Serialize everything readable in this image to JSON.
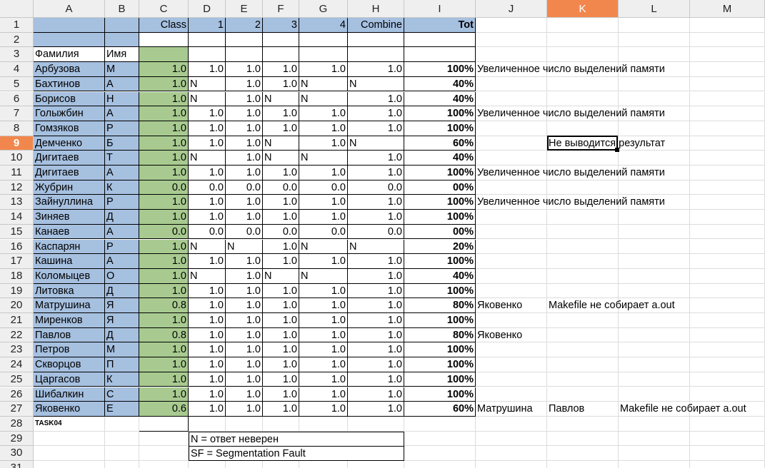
{
  "columns": [
    "A",
    "B",
    "C",
    "D",
    "E",
    "F",
    "G",
    "H",
    "I",
    "J",
    "K",
    "L",
    "M"
  ],
  "selected_column": "K",
  "selected_row": 9,
  "row_numbers": [
    1,
    2,
    3,
    4,
    5,
    6,
    7,
    8,
    9,
    10,
    11,
    12,
    13,
    14,
    15,
    16,
    17,
    18,
    19,
    20,
    21,
    22,
    23,
    24,
    25,
    26,
    27,
    28,
    29,
    30,
    31
  ],
  "header_row1": {
    "c": "Class",
    "d": "1",
    "e": "2",
    "f": "3",
    "g": "4",
    "h": "Combine",
    "i": "Tot"
  },
  "header_row3": {
    "a": "Фамилия",
    "b": "Имя"
  },
  "students": [
    {
      "row": 4,
      "a": "Арбузова",
      "b": "М",
      "c": "1.0",
      "d": "1.0",
      "e": "1.0",
      "f": "1.0",
      "g": "1.0",
      "h": "1.0",
      "i": "100%",
      "j": "Увеличенное число выделений памяти",
      "k": "",
      "l": ""
    },
    {
      "row": 5,
      "a": "Бахтинов",
      "b": "А",
      "c": "1.0",
      "d": "N",
      "e": "1.0",
      "f": "1.0",
      "g": "N",
      "h": "N",
      "i": "40%",
      "j": "",
      "k": "",
      "l": ""
    },
    {
      "row": 6,
      "a": "Борисов",
      "b": "Н",
      "c": "1.0",
      "d": "N",
      "e": "1.0",
      "f": "N",
      "g": "N",
      "h": "1.0",
      "i": "40%",
      "j": "",
      "k": "",
      "l": ""
    },
    {
      "row": 7,
      "a": "Голыжбин",
      "b": "А",
      "c": "1.0",
      "d": "1.0",
      "e": "1.0",
      "f": "1.0",
      "g": "1.0",
      "h": "1.0",
      "i": "100%",
      "j": "Увеличенное число выделений памяти",
      "k": "",
      "l": ""
    },
    {
      "row": 8,
      "a": "Гомзяков",
      "b": "Р",
      "c": "1.0",
      "d": "1.0",
      "e": "1.0",
      "f": "1.0",
      "g": "1.0",
      "h": "1.0",
      "i": "100%",
      "j": "",
      "k": "",
      "l": ""
    },
    {
      "row": 9,
      "a": "Демченко",
      "b": "Б",
      "c": "1.0",
      "d": "1.0",
      "e": "1.0",
      "f": "N",
      "g": "1.0",
      "h": "N",
      "i": "60%",
      "j": "",
      "k": "Не выводится результат",
      "l": ""
    },
    {
      "row": 10,
      "a": "Дигитаев",
      "b": "Т",
      "c": "1.0",
      "d": "N",
      "e": "1.0",
      "f": "N",
      "g": "N",
      "h": "1.0",
      "i": "40%",
      "j": "",
      "k": "",
      "l": ""
    },
    {
      "row": 11,
      "a": "Дигитаев",
      "b": "А",
      "c": "1.0",
      "d": "1.0",
      "e": "1.0",
      "f": "1.0",
      "g": "1.0",
      "h": "1.0",
      "i": "100%",
      "j": "Увеличенное число выделений памяти",
      "k": "",
      "l": ""
    },
    {
      "row": 12,
      "a": "Жубрин",
      "b": "К",
      "c": "0.0",
      "d": "0.0",
      "e": "0.0",
      "f": "0.0",
      "g": "0.0",
      "h": "0.0",
      "i": "00%",
      "j": "",
      "k": "",
      "l": ""
    },
    {
      "row": 13,
      "a": "Зайнуллина",
      "b": "Р",
      "c": "1.0",
      "d": "1.0",
      "e": "1.0",
      "f": "1.0",
      "g": "1.0",
      "h": "1.0",
      "i": "100%",
      "j": "Увеличенное число выделений памяти",
      "k": "",
      "l": ""
    },
    {
      "row": 14,
      "a": "Зиняев",
      "b": "Д",
      "c": "1.0",
      "d": "1.0",
      "e": "1.0",
      "f": "1.0",
      "g": "1.0",
      "h": "1.0",
      "i": "100%",
      "j": "",
      "k": "",
      "l": ""
    },
    {
      "row": 15,
      "a": "Канаев",
      "b": "А",
      "c": "0.0",
      "d": "0.0",
      "e": "0.0",
      "f": "0.0",
      "g": "0.0",
      "h": "0.0",
      "i": "00%",
      "j": "",
      "k": "",
      "l": ""
    },
    {
      "row": 16,
      "a": "Каспарян",
      "b": "Р",
      "c": "1.0",
      "d": "N",
      "e": "N",
      "f": "1.0",
      "g": "N",
      "h": "N",
      "i": "20%",
      "j": "",
      "k": "",
      "l": ""
    },
    {
      "row": 17,
      "a": "Кашина",
      "b": "А",
      "c": "1.0",
      "d": "1.0",
      "e": "1.0",
      "f": "1.0",
      "g": "1.0",
      "h": "1.0",
      "i": "100%",
      "j": "",
      "k": "",
      "l": ""
    },
    {
      "row": 18,
      "a": "Коломыцев",
      "b": "О",
      "c": "1.0",
      "d": "N",
      "e": "1.0",
      "f": "N",
      "g": "N",
      "h": "1.0",
      "i": "40%",
      "j": "",
      "k": "",
      "l": ""
    },
    {
      "row": 19,
      "a": "Литовка",
      "b": "Д",
      "c": "1.0",
      "d": "1.0",
      "e": "1.0",
      "f": "1.0",
      "g": "1.0",
      "h": "1.0",
      "i": "100%",
      "j": "",
      "k": "",
      "l": ""
    },
    {
      "row": 20,
      "a": "Матрушина",
      "b": "Я",
      "c": "0.8",
      "d": "1.0",
      "e": "1.0",
      "f": "1.0",
      "g": "1.0",
      "h": "1.0",
      "i": "80%",
      "j": "Яковенко",
      "k": "Makefile не собирает a.out",
      "l": ""
    },
    {
      "row": 21,
      "a": "Миренков",
      "b": "Я",
      "c": "1.0",
      "d": "1.0",
      "e": "1.0",
      "f": "1.0",
      "g": "1.0",
      "h": "1.0",
      "i": "100%",
      "j": "",
      "k": "",
      "l": ""
    },
    {
      "row": 22,
      "a": "Павлов",
      "b": "Д",
      "c": "0.8",
      "d": "1.0",
      "e": "1.0",
      "f": "1.0",
      "g": "1.0",
      "h": "1.0",
      "i": "80%",
      "j": "Яковенко",
      "k": "",
      "l": ""
    },
    {
      "row": 23,
      "a": "Петров",
      "b": "М",
      "c": "1.0",
      "d": "1.0",
      "e": "1.0",
      "f": "1.0",
      "g": "1.0",
      "h": "1.0",
      "i": "100%",
      "j": "",
      "k": "",
      "l": ""
    },
    {
      "row": 24,
      "a": "Скворцов",
      "b": "П",
      "c": "1.0",
      "d": "1.0",
      "e": "1.0",
      "f": "1.0",
      "g": "1.0",
      "h": "1.0",
      "i": "100%",
      "j": "",
      "k": "",
      "l": ""
    },
    {
      "row": 25,
      "a": "Царгасов",
      "b": "К",
      "c": "1.0",
      "d": "1.0",
      "e": "1.0",
      "f": "1.0",
      "g": "1.0",
      "h": "1.0",
      "i": "100%",
      "j": "",
      "k": "",
      "l": ""
    },
    {
      "row": 26,
      "a": "Шибалкин",
      "b": "С",
      "c": "1.0",
      "d": "1.0",
      "e": "1.0",
      "f": "1.0",
      "g": "1.0",
      "h": "1.0",
      "i": "100%",
      "j": "",
      "k": "",
      "l": ""
    },
    {
      "row": 27,
      "a": "Яковенко",
      "b": "Е",
      "c": "0.6",
      "d": "1.0",
      "e": "1.0",
      "f": "1.0",
      "g": "1.0",
      "h": "1.0",
      "i": "60%",
      "j": "Матрушина",
      "k": "Павлов",
      "l": "Makefile не собирает a.out"
    }
  ],
  "task_label": "TASK04",
  "legend": [
    "N = ответ неверен",
    "SF = Segmentation Fault"
  ],
  "colors": {
    "selection": "#f2874e",
    "name_fill": "#a6c0e0",
    "class_fill": "#a8ca90",
    "header_bg": "#efefef"
  }
}
